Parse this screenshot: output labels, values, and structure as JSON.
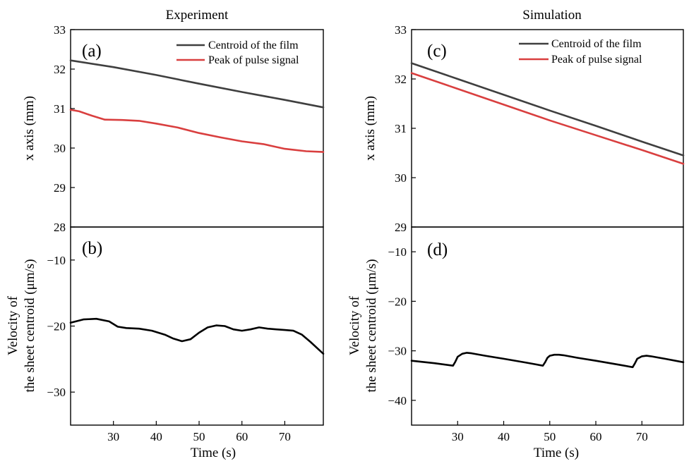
{
  "colors": {
    "centroid": "#3f3f3f",
    "peak": "#d93f3f",
    "velocity": "#000000"
  },
  "chart_data": [
    {
      "id": "a",
      "type": "line",
      "column_title": "Experiment",
      "panel_label": "(a)",
      "ylabel": "x axis (mm)",
      "xlim": [
        20,
        79
      ],
      "ylim": [
        28,
        33
      ],
      "yticks": [
        28,
        29,
        30,
        31,
        32,
        33
      ],
      "legend_position": "top-right",
      "series": [
        {
          "name": "Centroid of the film",
          "color": "#3f3f3f",
          "x": [
            20,
            30,
            40,
            50,
            60,
            70,
            79
          ],
          "y": [
            32.22,
            32.05,
            31.85,
            31.63,
            31.42,
            31.22,
            31.03
          ]
        },
        {
          "name": "Peak of pulse signal",
          "color": "#d93f3f",
          "x": [
            20,
            22,
            25,
            28,
            32,
            36,
            40,
            45,
            50,
            55,
            60,
            65,
            70,
            75,
            79
          ],
          "y": [
            30.97,
            30.93,
            30.82,
            30.72,
            30.71,
            30.69,
            30.62,
            30.52,
            30.38,
            30.27,
            30.17,
            30.1,
            29.98,
            29.92,
            29.9
          ]
        }
      ]
    },
    {
      "id": "b",
      "type": "line",
      "panel_label": "(b)",
      "ylabel_lines": [
        "Velocity of",
        "the sheet centroid (μm/s)"
      ],
      "xlabel": "Time (s)",
      "xlim": [
        20,
        79
      ],
      "ylim": [
        -35,
        -5
      ],
      "xticks": [
        30,
        40,
        50,
        60,
        70
      ],
      "yticks": [
        -10,
        -20,
        -30
      ],
      "series": [
        {
          "color": "#000000",
          "x": [
            20,
            23,
            26,
            29,
            31,
            33,
            36,
            39,
            42,
            44,
            46,
            48,
            50,
            52,
            54,
            56,
            58,
            60,
            62,
            64,
            66,
            68,
            70,
            72,
            74,
            76,
            78,
            79
          ],
          "y": [
            -19.5,
            -19.0,
            -18.9,
            -19.3,
            -20.1,
            -20.3,
            -20.4,
            -20.7,
            -21.3,
            -21.9,
            -22.3,
            -22.0,
            -21.0,
            -20.2,
            -19.9,
            -20.0,
            -20.5,
            -20.7,
            -20.5,
            -20.2,
            -20.4,
            -20.5,
            -20.6,
            -20.7,
            -21.3,
            -22.4,
            -23.6,
            -24.2
          ]
        }
      ]
    },
    {
      "id": "c",
      "type": "line",
      "column_title": "Simulation",
      "panel_label": "(c)",
      "ylabel": "x axis (mm)",
      "xlim": [
        20,
        79
      ],
      "ylim": [
        29,
        33
      ],
      "yticks": [
        29,
        30,
        31,
        32,
        33
      ],
      "legend_position": "top-right",
      "series": [
        {
          "name": "Centroid of the film",
          "color": "#3f3f3f",
          "x": [
            20,
            30,
            40,
            50,
            60,
            70,
            79
          ],
          "y": [
            32.32,
            32.0,
            31.68,
            31.36,
            31.05,
            30.73,
            30.45
          ]
        },
        {
          "name": "Peak of pulse signal",
          "color": "#d93f3f",
          "x": [
            20,
            30,
            40,
            50,
            60,
            70,
            79
          ],
          "y": [
            32.12,
            31.8,
            31.48,
            31.16,
            30.86,
            30.56,
            30.28
          ]
        }
      ]
    },
    {
      "id": "d",
      "type": "line",
      "panel_label": "(d)",
      "ylabel_lines": [
        "Velocity of",
        "the sheet centroid (μm/s)"
      ],
      "xlabel": "Time (s)",
      "xlim": [
        20,
        79
      ],
      "ylim": [
        -45,
        -5
      ],
      "xticks": [
        30,
        40,
        50,
        60,
        70
      ],
      "yticks": [
        -10,
        -20,
        -30,
        -40
      ],
      "series": [
        {
          "color": "#000000",
          "x": [
            20,
            25,
            29,
            29.5,
            30,
            31,
            32,
            33,
            36,
            40,
            45,
            48.5,
            49,
            49.5,
            50,
            51,
            52,
            53,
            56,
            60,
            65,
            68,
            68.5,
            69,
            70,
            71,
            72,
            75,
            79
          ],
          "y": [
            -32.0,
            -32.5,
            -33.0,
            -32.2,
            -31.2,
            -30.6,
            -30.4,
            -30.5,
            -31.0,
            -31.6,
            -32.4,
            -33.0,
            -32.3,
            -31.4,
            -31.0,
            -30.8,
            -30.8,
            -30.9,
            -31.4,
            -32.0,
            -32.8,
            -33.3,
            -32.5,
            -31.6,
            -31.1,
            -31.0,
            -31.1,
            -31.6,
            -32.3
          ]
        }
      ]
    }
  ]
}
